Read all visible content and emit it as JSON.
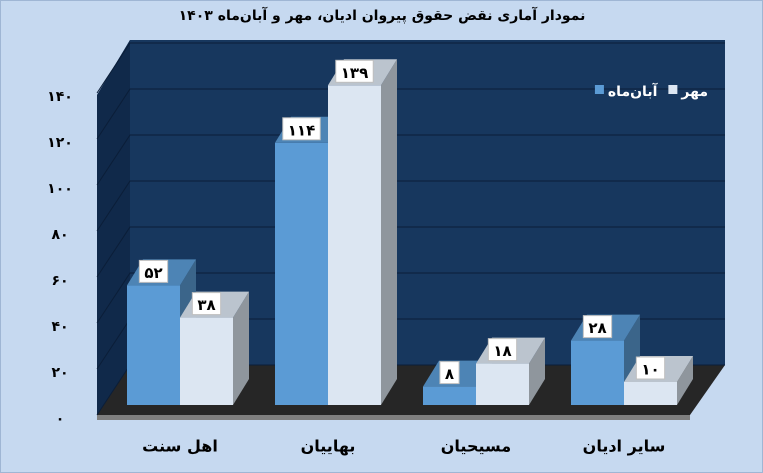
{
  "chart_data": {
    "type": "bar3d",
    "title": "نمودار آماری نقض حقوق پیروان ادیان، مهر و آبان‌ماه ۱۴۰۳",
    "categories": [
      "اهل سنت",
      "بهاییان",
      "مسیحیان",
      "سایر ادیان"
    ],
    "series": [
      {
        "name": "آبان‌ماه",
        "color": "#5b9bd5",
        "values": [
          52,
          114,
          8,
          28
        ],
        "value_labels": [
          "۵۲",
          "۱۱۴",
          "۸",
          "۲۸"
        ]
      },
      {
        "name": "مهر",
        "color": "#dce6f2",
        "values": [
          38,
          139,
          18,
          10
        ],
        "value_labels": [
          "۳۸",
          "۱۳۹",
          "۱۸",
          "۱۰"
        ]
      }
    ],
    "ylim": [
      0,
      140
    ],
    "yticks": [
      {
        "value": 0,
        "label": "۰"
      },
      {
        "value": 20,
        "label": "۲۰"
      },
      {
        "value": 40,
        "label": "۴۰"
      },
      {
        "value": 60,
        "label": "۶۰"
      },
      {
        "value": 80,
        "label": "۸۰"
      },
      {
        "value": 100,
        "label": "۱۰۰"
      },
      {
        "value": 120,
        "label": "۱۲۰"
      },
      {
        "value": 140,
        "label": "۱۴۰"
      }
    ],
    "grid": true,
    "legend": "top-right"
  }
}
